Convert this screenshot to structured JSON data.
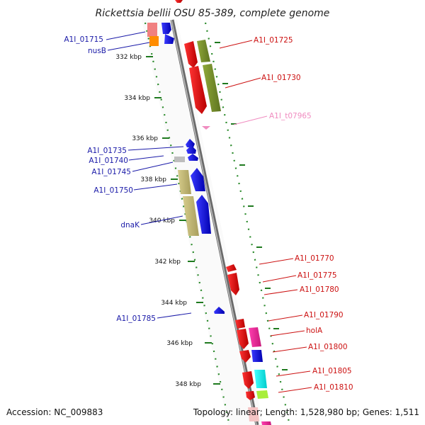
{
  "title": "Rickettsia bellii OSU 85-389, complete genome",
  "footer": {
    "accession": "Accession: NC_009883",
    "summary": "Topology: linear; Length: 1,528,980 bp; Genes: 1,511"
  },
  "ruler_labels": [
    "332 kbp",
    "334 kbp",
    "336 kbp",
    "338 kbp",
    "340 kbp",
    "342 kbp",
    "344 kbp",
    "346 kbp",
    "348 kbp"
  ],
  "left_genes": [
    {
      "label": "A1I_01715",
      "color": "#1a1aa8"
    },
    {
      "label": "nusB",
      "color": "#1a1aa8"
    },
    {
      "label": "A1I_01735",
      "color": "#1a1aa8"
    },
    {
      "label": "A1I_01740",
      "color": "#1a1aa8"
    },
    {
      "label": "A1I_01745",
      "color": "#1a1aa8"
    },
    {
      "label": "A1I_01750",
      "color": "#1a1aa8"
    },
    {
      "label": "dnaK",
      "color": "#1a1aa8"
    },
    {
      "label": "A1I_01785",
      "color": "#1a1aa8"
    }
  ],
  "right_genes": [
    {
      "label": "A1I_01725",
      "color": "#cc1111"
    },
    {
      "label": "A1I_01730",
      "color": "#cc1111"
    },
    {
      "label": "A1I_t07965",
      "color": "#f08cc0"
    },
    {
      "label": "A1I_01770",
      "color": "#cc1111"
    },
    {
      "label": "A1I_01775",
      "color": "#cc1111"
    },
    {
      "label": "A1I_01780",
      "color": "#cc1111"
    },
    {
      "label": "A1I_01790",
      "color": "#cc1111"
    },
    {
      "label": "holA",
      "color": "#cc1111"
    },
    {
      "label": "A1I_01800",
      "color": "#cc1111"
    },
    {
      "label": "A1I_01805",
      "color": "#cc1111"
    },
    {
      "label": "A1I_01810",
      "color": "#cc1111"
    }
  ]
}
